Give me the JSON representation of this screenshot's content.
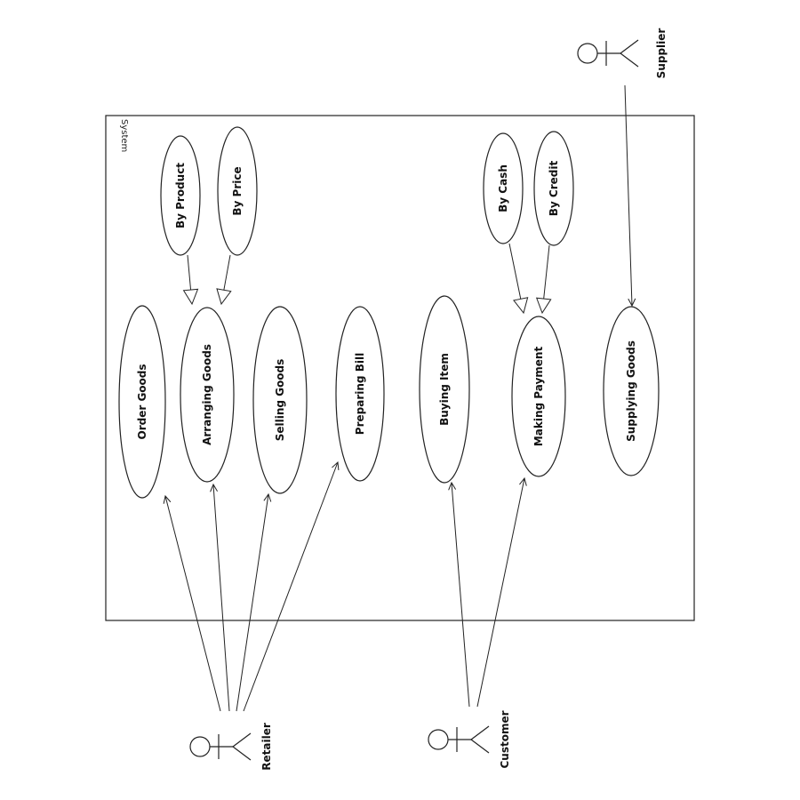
{
  "system": {
    "label": "System"
  },
  "use_cases": {
    "order_goods": "Order Goods",
    "arranging_goods": "Arranging Goods",
    "selling_goods": "Selling Goods",
    "preparing_bill": "Preparing Bill",
    "buying_item": "Buying Item",
    "making_payment": "Making Payment",
    "supplying_goods": "Supplying Goods",
    "by_product": "By Product",
    "by_price": "By Price",
    "by_cash": "By Cash",
    "by_credit": "By Credit"
  },
  "actors": {
    "retailer": "Retailer",
    "customer": "Customer",
    "supplier": "Supplier"
  }
}
